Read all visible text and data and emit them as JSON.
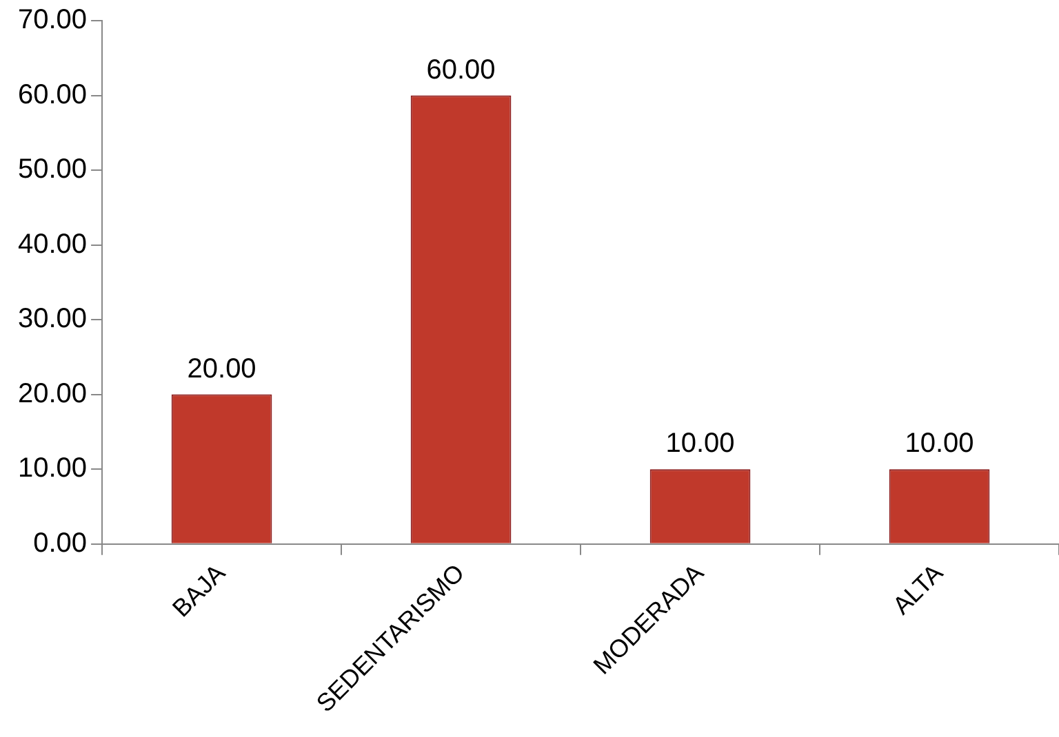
{
  "chart_data": {
    "type": "bar",
    "categories": [
      "BAJA",
      "SEDENTARISMO",
      "MODERADA",
      "ALTA"
    ],
    "values": [
      20,
      60,
      10,
      10
    ],
    "value_labels": [
      "20.00",
      "60.00",
      "10.00",
      "10.00"
    ],
    "color": "#c0392b",
    "ylim": [
      0,
      70
    ],
    "yticks": [
      {
        "value": 0,
        "label": "0.00"
      },
      {
        "value": 10,
        "label": "10.00"
      },
      {
        "value": 20,
        "label": "20.00"
      },
      {
        "value": 30,
        "label": "30.00"
      },
      {
        "value": 40,
        "label": "40.00"
      },
      {
        "value": 50,
        "label": "50.00"
      },
      {
        "value": 60,
        "label": "60.00"
      },
      {
        "value": 70,
        "label": "70.00"
      }
    ],
    "grid": false,
    "legend": false
  }
}
